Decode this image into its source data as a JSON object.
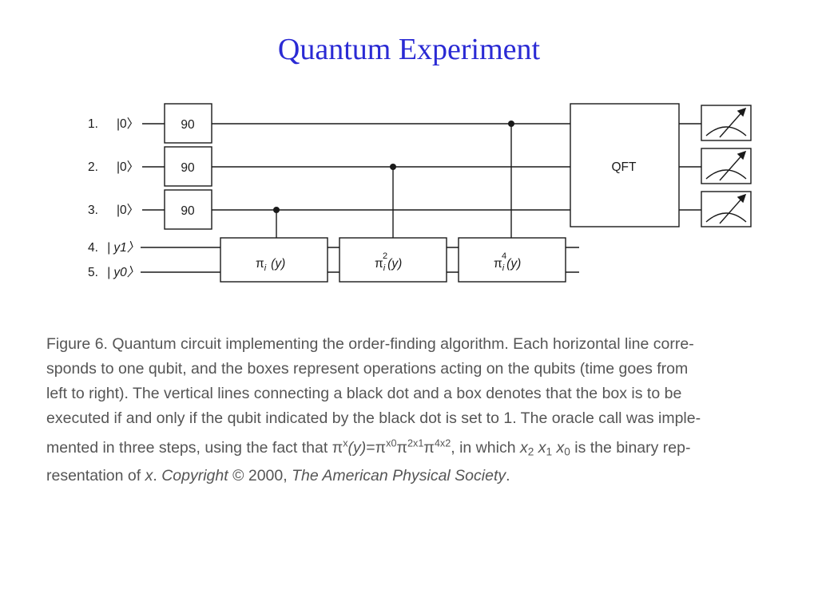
{
  "title": "Quantum Experiment",
  "circuit": {
    "qubits": [
      {
        "number": "1.",
        "state": "|0〉"
      },
      {
        "number": "2.",
        "state": "|0〉"
      },
      {
        "number": "3.",
        "state": "|0〉"
      },
      {
        "number": "4.",
        "state": "| y1〉"
      },
      {
        "number": "5.",
        "state": "| y0〉"
      }
    ],
    "gate_label": "90",
    "qft_label": "QFT",
    "oracles": [
      {
        "base": "π",
        "sub": "i",
        "sup": "",
        "arg": "(y)"
      },
      {
        "base": "π",
        "sub": "i",
        "sup": "2",
        "arg": "(y)"
      },
      {
        "base": "π",
        "sub": "i",
        "sup": "4",
        "arg": "(y)"
      }
    ],
    "meter_icon": "measurement-meter-icon"
  },
  "caption": {
    "line1": "Figure 6. Quantum circuit implementing the order-finding algorithm. Each horizontal line corre-",
    "line2": "sponds to one qubit, and the boxes represent operations acting on the qubits (time goes from",
    "line3": "left to right). The vertical lines connecting a black dot and a box denotes that the box is to be",
    "line4": "executed if and only if the qubit indicated by the black dot is set to 1. The oracle call was imple-",
    "line5_a": "mented in three steps, using the fact that ",
    "formula": {
      "pi": "π",
      "x": "x",
      "y_arg": "(y)",
      "eq": "=",
      "x0": "x0",
      "two_x1": "2x1",
      "four_x2": "4x2"
    },
    "line5_b": ", in which ",
    "var_x": "x",
    "sub2": "2",
    "sub1": "1",
    "sub0": "0",
    "line5_c": " is the binary rep-",
    "line6_a": "resentation of ",
    "line6_x": "x",
    "line6_b": ". ",
    "copyright_label": "Copyright",
    "copyright_mid": " © 2000, ",
    "society": "The American Physical Society",
    "line6_end": "."
  }
}
